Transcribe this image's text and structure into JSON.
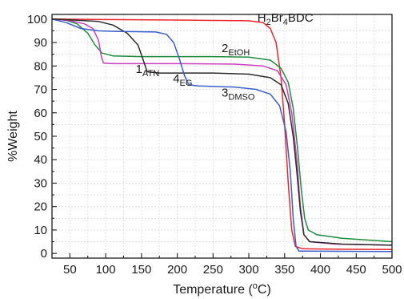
{
  "chart_data": {
    "type": "line",
    "title": "",
    "xlabel": "Temperature (oC)",
    "ylabel": "%Weight",
    "xlim": [
      25,
      500
    ],
    "ylim": [
      -2,
      102
    ],
    "x_ticks": [
      50,
      100,
      150,
      200,
      250,
      300,
      350,
      400,
      450,
      500
    ],
    "y_ticks": [
      0,
      10,
      20,
      30,
      40,
      50,
      60,
      70,
      80,
      90,
      100
    ],
    "grid": true,
    "series": [
      {
        "name": "H2Br4BDC",
        "label_main": "H",
        "label_parts": [
          {
            "t": "H"
          },
          {
            "t": "2",
            "sub": true
          },
          {
            "t": "Br"
          },
          {
            "t": "4",
            "sub": true
          },
          {
            "t": "BDC"
          }
        ],
        "color": "#e8262b",
        "points": [
          [
            25,
            100
          ],
          [
            100,
            99.8
          ],
          [
            200,
            99.6
          ],
          [
            300,
            99.3
          ],
          [
            320,
            98.5
          ],
          [
            330,
            96
          ],
          [
            338,
            90
          ],
          [
            345,
            75
          ],
          [
            350,
            55
          ],
          [
            355,
            30
          ],
          [
            360,
            10
          ],
          [
            365,
            3
          ],
          [
            375,
            2
          ],
          [
            420,
            1.8
          ],
          [
            500,
            1.7
          ]
        ]
      },
      {
        "name": "2EtOH",
        "label_parts": [
          {
            "t": "2"
          },
          {
            "t": "EtOH",
            "sub": true
          }
        ],
        "color": "#1e8c3a",
        "points": [
          [
            25,
            100
          ],
          [
            45,
            99.5
          ],
          [
            60,
            98
          ],
          [
            75,
            94
          ],
          [
            85,
            89
          ],
          [
            95,
            85.5
          ],
          [
            110,
            84.3
          ],
          [
            150,
            84
          ],
          [
            250,
            84
          ],
          [
            300,
            83.8
          ],
          [
            330,
            82.5
          ],
          [
            345,
            79
          ],
          [
            355,
            73
          ],
          [
            362,
            62
          ],
          [
            368,
            45
          ],
          [
            373,
            28
          ],
          [
            378,
            15
          ],
          [
            383,
            10
          ],
          [
            395,
            8
          ],
          [
            430,
            6.5
          ],
          [
            500,
            5
          ]
        ]
      },
      {
        "name": "1ATN",
        "label_parts": [
          {
            "t": "1"
          },
          {
            "t": "ATN",
            "sub": true
          }
        ],
        "color": "#c93fbf",
        "points": [
          [
            25,
            100
          ],
          [
            50,
            99.4
          ],
          [
            70,
            98
          ],
          [
            82,
            96
          ],
          [
            90,
            91
          ],
          [
            94,
            84
          ],
          [
            97,
            81.2
          ],
          [
            110,
            81
          ],
          [
            200,
            81
          ],
          [
            280,
            80.8
          ],
          [
            320,
            80
          ],
          [
            340,
            78
          ],
          [
            352,
            72
          ],
          [
            360,
            60
          ],
          [
            367,
            40
          ],
          [
            372,
            20
          ],
          [
            377,
            8
          ],
          [
            385,
            5
          ],
          [
            420,
            4
          ],
          [
            500,
            3.5
          ]
        ]
      },
      {
        "name": "4EG",
        "label_parts": [
          {
            "t": "4"
          },
          {
            "t": "EG",
            "sub": true
          }
        ],
        "color": "#2b2b2b",
        "points": [
          [
            25,
            100
          ],
          [
            60,
            99.5
          ],
          [
            90,
            99
          ],
          [
            110,
            97.5
          ],
          [
            130,
            94
          ],
          [
            145,
            89
          ],
          [
            152,
            83
          ],
          [
            158,
            77.5
          ],
          [
            175,
            77
          ],
          [
            250,
            77
          ],
          [
            300,
            76.5
          ],
          [
            330,
            75
          ],
          [
            345,
            72
          ],
          [
            355,
            64
          ],
          [
            362,
            50
          ],
          [
            367,
            35
          ],
          [
            372,
            18
          ],
          [
            377,
            8
          ],
          [
            385,
            5
          ],
          [
            430,
            4
          ],
          [
            500,
            3.5
          ]
        ]
      },
      {
        "name": "3DMSO",
        "label_parts": [
          {
            "t": "3"
          },
          {
            "t": "DMSO",
            "sub": true
          }
        ],
        "color": "#3b5fc9",
        "points": [
          [
            25,
            100
          ],
          [
            45,
            98.5
          ],
          [
            65,
            96
          ],
          [
            90,
            95
          ],
          [
            120,
            94.7
          ],
          [
            170,
            94.5
          ],
          [
            185,
            93.5
          ],
          [
            195,
            90
          ],
          [
            203,
            83
          ],
          [
            210,
            76
          ],
          [
            216,
            72
          ],
          [
            230,
            71.5
          ],
          [
            280,
            71
          ],
          [
            310,
            70
          ],
          [
            330,
            68
          ],
          [
            343,
            63
          ],
          [
            352,
            52
          ],
          [
            358,
            35
          ],
          [
            362,
            15
          ],
          [
            366,
            3
          ],
          [
            370,
            1
          ],
          [
            500,
            0.8
          ]
        ]
      }
    ]
  }
}
